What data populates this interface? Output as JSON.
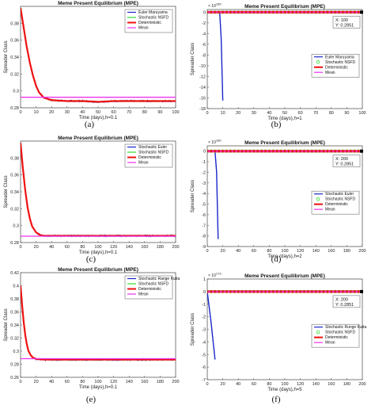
{
  "colors": {
    "blue": "#1a27c9",
    "green": "#33dd33",
    "red": "#ee1111",
    "magenta": "#ee33ee",
    "black": "#000000"
  },
  "chart_data": [
    {
      "panel": "(a)",
      "type": "line",
      "title": "Meme Present Equilibrium (MPE)",
      "xlabel": "Time (days),h=0.1",
      "ylabel": "Spreader Class",
      "xlim": [
        0,
        100
      ],
      "ylim": [
        0.28,
        0.4
      ],
      "xticks": [
        "0",
        "10",
        "20",
        "30",
        "40",
        "50",
        "60",
        "70",
        "80",
        "90",
        "100"
      ],
      "yticks": [
        "0.28",
        "0.3",
        "0.32",
        "0.34",
        "0.36",
        "0.38"
      ],
      "ytick_values": [
        0.28,
        0.3,
        0.32,
        0.34,
        0.36,
        0.38
      ],
      "legend": {
        "position": "top-right",
        "entries": [
          "Euler Maruyama",
          "Stochastic NSFD",
          "Deterministic",
          "Mean"
        ]
      },
      "series": [
        {
          "name": "Euler Maruyama",
          "color": "blue",
          "style": "noisy",
          "x": [
            0,
            2,
            4,
            6,
            8,
            10,
            12,
            15,
            20,
            30,
            40,
            50,
            60,
            70,
            80,
            90,
            100
          ],
          "values": [
            0.398,
            0.375,
            0.352,
            0.333,
            0.318,
            0.306,
            0.298,
            0.292,
            0.289,
            0.288,
            0.288,
            0.287,
            0.288,
            0.288,
            0.288,
            0.288,
            0.288
          ]
        },
        {
          "name": "Stochastic NSFD",
          "color": "green",
          "style": "noisy",
          "x": [
            0,
            2,
            4,
            6,
            8,
            10,
            12,
            15,
            20,
            30,
            40,
            50,
            60,
            70,
            80,
            90,
            100
          ],
          "values": [
            0.398,
            0.375,
            0.352,
            0.333,
            0.318,
            0.306,
            0.298,
            0.292,
            0.289,
            0.288,
            0.288,
            0.287,
            0.288,
            0.288,
            0.288,
            0.288,
            0.288
          ]
        },
        {
          "name": "Deterministic",
          "color": "red",
          "style": "smooth",
          "x": [
            0,
            2,
            4,
            6,
            8,
            10,
            12,
            15,
            20,
            30,
            40,
            50,
            60,
            70,
            80,
            90,
            100
          ],
          "values": [
            0.398,
            0.375,
            0.352,
            0.333,
            0.318,
            0.306,
            0.298,
            0.292,
            0.289,
            0.288,
            0.288,
            0.287,
            0.288,
            0.288,
            0.288,
            0.288,
            0.288
          ]
        },
        {
          "name": "Mean",
          "color": "magenta",
          "style": "flat",
          "x": [
            0,
            100
          ],
          "values": [
            0.2925,
            0.2925
          ]
        }
      ]
    },
    {
      "panel": "(b)",
      "type": "line",
      "title": "Meme Present Equilibrium (MPE)",
      "xlabel": "Time (days),h=1",
      "ylabel": "Spreader Class",
      "exponent": "10^185",
      "xlim": [
        0,
        100
      ],
      "ylim": [
        -18,
        0.5
      ],
      "xticks": [
        "0",
        "10",
        "20",
        "30",
        "40",
        "50",
        "60",
        "70",
        "80",
        "90",
        "100"
      ],
      "yticks": [
        "0",
        "-2",
        "-4",
        "-6",
        "-8",
        "-10",
        "-12",
        "-14",
        "-16",
        "-18"
      ],
      "ytick_values": [
        0,
        -2,
        -4,
        -6,
        -8,
        -10,
        -12,
        -14,
        -16,
        -18
      ],
      "datatip": {
        "x_label": "X: 100",
        "y_label": "Y: 0.2851"
      },
      "legend": {
        "position": "middle-right",
        "entries": [
          "Euler Maruyama",
          "Stochastic NSFD",
          "Deterministic",
          "Mean"
        ]
      },
      "series": [
        {
          "name": "Euler Maruyama",
          "color": "blue",
          "style": "plain",
          "x": [
            0,
            8,
            9,
            10
          ],
          "values": [
            0,
            0,
            -5,
            -16.5
          ]
        },
        {
          "name": "Stochastic NSFD",
          "color": "green",
          "style": "circles",
          "x": [
            0,
            100
          ],
          "values": [
            0,
            0
          ]
        },
        {
          "name": "Deterministic",
          "color": "red",
          "style": "thick",
          "x": [
            0,
            100
          ],
          "values": [
            0,
            0
          ]
        },
        {
          "name": "Mean",
          "color": "magenta",
          "style": "plain",
          "x": [
            0,
            100
          ],
          "values": [
            0,
            0
          ]
        }
      ]
    },
    {
      "panel": "(c)",
      "type": "line",
      "title": "Meme Present Equilibrium (MPE)",
      "xlabel": "Time (days),h=0.1",
      "ylabel": "Spreader Class",
      "xlim": [
        0,
        200
      ],
      "ylim": [
        0.28,
        0.4
      ],
      "xticks": [
        "0",
        "20",
        "40",
        "60",
        "80",
        "100",
        "120",
        "140",
        "160",
        "180",
        "200"
      ],
      "yticks": [
        "0.28",
        "0.3",
        "0.32",
        "0.34",
        "0.36",
        "0.38"
      ],
      "ytick_values": [
        0.28,
        0.3,
        0.32,
        0.34,
        0.36,
        0.38
      ],
      "legend": {
        "position": "top-right",
        "entries": [
          "Stochastic Euler",
          "Stochastic NSFD",
          "Deterministic",
          "Mean"
        ]
      },
      "series": [
        {
          "name": "Stochastic Euler",
          "color": "blue",
          "style": "noisy",
          "x": [
            0,
            3,
            6,
            9,
            12,
            15,
            20,
            25,
            30,
            40,
            60,
            80,
            100,
            150,
            200
          ],
          "values": [
            0.398,
            0.368,
            0.342,
            0.322,
            0.308,
            0.299,
            0.292,
            0.289,
            0.288,
            0.288,
            0.288,
            0.288,
            0.288,
            0.288,
            0.288
          ]
        },
        {
          "name": "Stochastic NSFD",
          "color": "green",
          "style": "noisy",
          "x": [
            0,
            3,
            6,
            9,
            12,
            15,
            20,
            25,
            30,
            40,
            60,
            80,
            100,
            150,
            200
          ],
          "values": [
            0.398,
            0.368,
            0.342,
            0.322,
            0.308,
            0.299,
            0.292,
            0.289,
            0.288,
            0.288,
            0.288,
            0.288,
            0.288,
            0.288,
            0.288
          ]
        },
        {
          "name": "Deterministic",
          "color": "red",
          "style": "smooth",
          "x": [
            0,
            3,
            6,
            9,
            12,
            15,
            20,
            25,
            30,
            40,
            60,
            80,
            100,
            150,
            200
          ],
          "values": [
            0.398,
            0.368,
            0.342,
            0.322,
            0.308,
            0.299,
            0.292,
            0.289,
            0.288,
            0.288,
            0.288,
            0.288,
            0.288,
            0.288,
            0.288
          ]
        },
        {
          "name": "Mean",
          "color": "magenta",
          "style": "flat",
          "x": [
            0,
            200
          ],
          "values": [
            0.2875,
            0.2875
          ]
        }
      ]
    },
    {
      "panel": "(d)",
      "type": "line",
      "title": "Meme Present Equilibrium (MPE)",
      "xlabel": "Time (days),h=2",
      "ylabel": "Spreader Class",
      "exponent": "10^180",
      "xlim": [
        0,
        200
      ],
      "ylim": [
        -9,
        0.5
      ],
      "xticks": [
        "0",
        "20",
        "40",
        "60",
        "80",
        "100",
        "120",
        "140",
        "160",
        "180",
        "200"
      ],
      "yticks": [
        "0",
        "-1",
        "-2",
        "-3",
        "-4",
        "-5",
        "-6",
        "-7",
        "-8",
        "-9"
      ],
      "ytick_values": [
        0,
        -1,
        -2,
        -3,
        -4,
        -5,
        -6,
        -7,
        -8,
        -9
      ],
      "datatip": {
        "x_label": "X: 200",
        "y_label": "Y: 0.2851"
      },
      "legend": {
        "position": "middle-right",
        "entries": [
          "Stochastic Euler",
          "Stochastic NSFD",
          "Deterministic",
          "Mean"
        ]
      },
      "series": [
        {
          "name": "Stochastic Euler",
          "color": "blue",
          "style": "plain",
          "x": [
            0,
            10,
            12,
            14
          ],
          "values": [
            0,
            0,
            -2,
            -8.3
          ]
        },
        {
          "name": "Stochastic NSFD",
          "color": "green",
          "style": "circles",
          "x": [
            0,
            200
          ],
          "values": [
            0,
            0
          ]
        },
        {
          "name": "Deterministic",
          "color": "red",
          "style": "thick",
          "x": [
            0,
            200
          ],
          "values": [
            0,
            0
          ]
        },
        {
          "name": "Mean",
          "color": "magenta",
          "style": "plain",
          "x": [
            0,
            200
          ],
          "values": [
            0,
            0
          ]
        }
      ]
    },
    {
      "panel": "(e)",
      "type": "line",
      "title": "Meme Present Equilibrium (MPE)",
      "xlabel": "Time (days),h=0.1",
      "ylabel": "Spreader Class",
      "xlim": [
        0,
        200
      ],
      "ylim": [
        0.26,
        0.42
      ],
      "xticks": [
        "0",
        "20",
        "40",
        "60",
        "80",
        "100",
        "120",
        "140",
        "160",
        "180",
        "200"
      ],
      "yticks": [
        "0.26",
        "0.28",
        "0.3",
        "0.32",
        "0.34",
        "0.36",
        "0.38",
        "0.4",
        "0.42"
      ],
      "ytick_values": [
        0.26,
        0.28,
        0.3,
        0.32,
        0.34,
        0.36,
        0.38,
        0.4,
        0.42
      ],
      "legend": {
        "position": "top-right",
        "entries": [
          "Stochastic Range Kutta",
          "Stochastic NSFD",
          "Deterministic",
          "Mean"
        ]
      },
      "series": [
        {
          "name": "Stochastic Range Kutta",
          "color": "blue",
          "style": "noisy",
          "x": [
            0,
            2,
            4,
            6,
            8,
            10,
            13,
            16,
            20,
            30,
            40,
            60,
            100,
            150,
            200
          ],
          "values": [
            0.4,
            0.37,
            0.345,
            0.325,
            0.311,
            0.301,
            0.294,
            0.29,
            0.288,
            0.287,
            0.287,
            0.287,
            0.287,
            0.287,
            0.287
          ]
        },
        {
          "name": "Stochastic NSFD",
          "color": "green",
          "style": "noisy",
          "x": [
            0,
            2,
            4,
            6,
            8,
            10,
            13,
            16,
            20,
            30,
            40,
            60,
            100,
            150,
            200
          ],
          "values": [
            0.4,
            0.37,
            0.345,
            0.325,
            0.311,
            0.301,
            0.294,
            0.29,
            0.288,
            0.287,
            0.287,
            0.287,
            0.287,
            0.287,
            0.287
          ]
        },
        {
          "name": "Deterministic",
          "color": "red",
          "style": "smooth",
          "x": [
            0,
            2,
            4,
            6,
            8,
            10,
            13,
            16,
            20,
            30,
            40,
            60,
            100,
            150,
            200
          ],
          "values": [
            0.4,
            0.37,
            0.345,
            0.325,
            0.311,
            0.301,
            0.294,
            0.29,
            0.288,
            0.287,
            0.287,
            0.287,
            0.287,
            0.287,
            0.287
          ]
        },
        {
          "name": "Mean",
          "color": "magenta",
          "style": "flat",
          "x": [
            0,
            200
          ],
          "values": [
            0.2885,
            0.2885
          ]
        }
      ]
    },
    {
      "panel": "(f)",
      "type": "line",
      "title": "Meme Present Equilibrium (MPE)",
      "xlabel": "Time (days),h=5",
      "ylabel": "Spreader Class",
      "exponent": "10^173",
      "xlim": [
        0,
        200
      ],
      "ylim": [
        -7,
        1
      ],
      "xticks": [
        "0",
        "20",
        "40",
        "60",
        "80",
        "100",
        "120",
        "140",
        "160",
        "180",
        "200"
      ],
      "yticks": [
        "1",
        "0",
        "-1",
        "-2",
        "-3",
        "-4",
        "-5",
        "-6",
        "-7"
      ],
      "ytick_values": [
        1,
        0,
        -1,
        -2,
        -3,
        -4,
        -5,
        -6,
        -7
      ],
      "datatip": {
        "x_label": "X: 200",
        "y_label": "Y: 0.2851"
      },
      "legend": {
        "position": "middle-right",
        "entries": [
          "Stochastic Runge Kutta",
          "Stochastic NSFD",
          "Deterministic",
          "Mean"
        ]
      },
      "series": [
        {
          "name": "Stochastic Runge Kutta",
          "color": "blue",
          "style": "plain",
          "x": [
            0,
            5,
            10
          ],
          "values": [
            0,
            -2.5,
            -5.4
          ]
        },
        {
          "name": "Stochastic NSFD",
          "color": "green",
          "style": "circles",
          "x": [
            0,
            200
          ],
          "values": [
            0,
            0
          ]
        },
        {
          "name": "Deterministic",
          "color": "red",
          "style": "thick",
          "x": [
            0,
            200
          ],
          "values": [
            0,
            0
          ]
        },
        {
          "name": "Mean",
          "color": "magenta",
          "style": "plain",
          "x": [
            0,
            200
          ],
          "values": [
            0,
            0
          ]
        }
      ]
    }
  ]
}
